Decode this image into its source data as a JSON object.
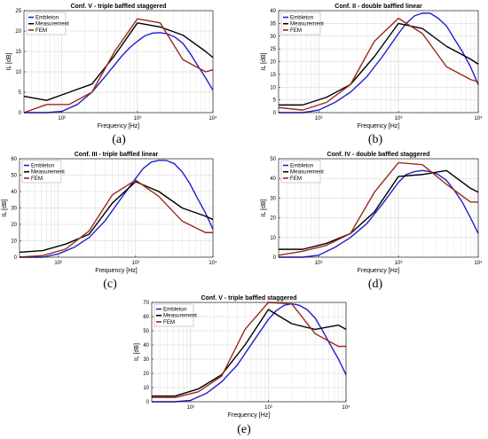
{
  "chart_data": [
    {
      "type": "line",
      "letter": "(a)",
      "title": "Conf. V - triple baffled staggered",
      "xlabel": "Frequency [Hz]",
      "ylabel": "IL [dB]",
      "xscale": "log",
      "xlim": [
        31.5,
        10000
      ],
      "ylim": [
        0,
        25
      ],
      "yticks": [
        0,
        5,
        10,
        15,
        20,
        25
      ],
      "xticks": [
        {
          "v": 100,
          "label": "10²"
        },
        {
          "v": 1000,
          "label": "10³"
        },
        {
          "v": 10000,
          "label": "10⁴"
        }
      ],
      "legend_position": "top-left",
      "grid": true,
      "series": [
        {
          "name": "Embleton",
          "color": "#1f1fd0",
          "x": [
            31.5,
            63,
            100,
            160,
            250,
            400,
            630,
            800,
            1000,
            1250,
            1600,
            2000,
            2500,
            3150,
            4000,
            5000,
            6300,
            8000,
            10000
          ],
          "y": [
            0,
            0,
            0.3,
            2,
            5,
            9.5,
            14,
            16,
            17.5,
            18.8,
            19.5,
            19.6,
            19.3,
            18.5,
            17,
            14.5,
            11.5,
            8.5,
            5.5
          ]
        },
        {
          "name": "Measurement",
          "color": "#000000",
          "x": [
            31.5,
            63,
            125,
            250,
            500,
            1000,
            2000,
            4000,
            8000,
            10000
          ],
          "y": [
            4,
            3,
            5,
            7,
            14,
            22,
            21,
            19,
            15,
            13.5
          ]
        },
        {
          "name": "FEM",
          "color": "#9b2a1a",
          "x": [
            31.5,
            63,
            125,
            250,
            500,
            1000,
            2000,
            4000,
            8000,
            10000
          ],
          "y": [
            0,
            2,
            2,
            5,
            15,
            23,
            22,
            13,
            10,
            10.5
          ]
        }
      ]
    },
    {
      "type": "line",
      "letter": "(b)",
      "title": "Conf. II - double baffled linear",
      "xlabel": "Frequency [Hz]",
      "ylabel": "IL [dB]",
      "xscale": "log",
      "xlim": [
        31.5,
        10000
      ],
      "ylim": [
        0,
        40
      ],
      "yticks": [
        0,
        5,
        10,
        15,
        20,
        25,
        30,
        35,
        40
      ],
      "xticks": [
        {
          "v": 100,
          "label": "10²"
        },
        {
          "v": 1000,
          "label": "10³"
        },
        {
          "v": 10000,
          "label": "10⁴"
        }
      ],
      "legend_position": "top-left",
      "grid": true,
      "series": [
        {
          "name": "Embleton",
          "color": "#1f1fd0",
          "x": [
            31.5,
            63,
            100,
            160,
            250,
            400,
            630,
            1000,
            1250,
            1600,
            2000,
            2500,
            3150,
            4000,
            5000,
            6300,
            8000,
            10000
          ],
          "y": [
            0,
            0,
            1,
            4,
            8,
            14,
            22,
            31,
            35,
            38,
            39,
            39,
            37,
            34,
            29,
            24,
            18,
            11
          ]
        },
        {
          "name": "Measurement",
          "color": "#000000",
          "x": [
            31.5,
            63,
            125,
            250,
            500,
            1000,
            2000,
            4000,
            8000,
            10000
          ],
          "y": [
            3,
            3,
            6,
            11,
            22,
            35,
            33,
            26,
            21,
            19
          ]
        },
        {
          "name": "FEM",
          "color": "#9b2a1a",
          "x": [
            31.5,
            63,
            125,
            250,
            500,
            1000,
            2000,
            4000,
            8000,
            10000
          ],
          "y": [
            2,
            1,
            4,
            11,
            28,
            37,
            31,
            18,
            13,
            12
          ]
        }
      ]
    },
    {
      "type": "line",
      "letter": "(c)",
      "title": "Conf. III - triple baffled linear",
      "xlabel": "Frequency [Hz]",
      "ylabel": "IL [dB]",
      "xscale": "log",
      "xlim": [
        31.5,
        10000
      ],
      "ylim": [
        0,
        60
      ],
      "yticks": [
        0,
        10,
        20,
        30,
        40,
        50,
        60
      ],
      "xticks": [
        {
          "v": 100,
          "label": "10²"
        },
        {
          "v": 1000,
          "label": "10³"
        },
        {
          "v": 10000,
          "label": "10⁴"
        }
      ],
      "legend_position": "top-left",
      "grid": true,
      "series": [
        {
          "name": "Embleton",
          "color": "#1f1fd0",
          "x": [
            31.5,
            63,
            100,
            160,
            250,
            400,
            630,
            1000,
            1250,
            1600,
            2000,
            2500,
            3150,
            4000,
            5000,
            6300,
            8000,
            10000
          ],
          "y": [
            0,
            0,
            2,
            6,
            12,
            22,
            35,
            48,
            54,
            58,
            59,
            59,
            57,
            52,
            45,
            36,
            27,
            17
          ]
        },
        {
          "name": "Measurement",
          "color": "#000000",
          "x": [
            31.5,
            63,
            125,
            250,
            500,
            1000,
            2000,
            4000,
            8000,
            10000
          ],
          "y": [
            3,
            4,
            8,
            14,
            33,
            46,
            40,
            30,
            25,
            23
          ]
        },
        {
          "name": "FEM",
          "color": "#9b2a1a",
          "x": [
            31.5,
            63,
            125,
            250,
            500,
            1000,
            2000,
            4000,
            8000,
            10000
          ],
          "y": [
            0,
            1,
            5,
            16,
            38,
            47,
            37,
            22,
            15,
            15
          ]
        }
      ]
    },
    {
      "type": "line",
      "letter": "(d)",
      "title": "Conf. IV - double baffled staggered",
      "xlabel": "Frequency [Hz]",
      "ylabel": "IL [dB]",
      "xscale": "log",
      "xlim": [
        31.5,
        10000
      ],
      "ylim": [
        0,
        50
      ],
      "yticks": [
        0,
        10,
        20,
        30,
        40,
        50
      ],
      "xticks": [
        {
          "v": 100,
          "label": "10²"
        },
        {
          "v": 1000,
          "label": "10³"
        },
        {
          "v": 10000,
          "label": "10⁴"
        }
      ],
      "legend_position": "top-left",
      "grid": true,
      "series": [
        {
          "name": "Embleton",
          "color": "#1f1fd0",
          "x": [
            31.5,
            63,
            100,
            160,
            250,
            400,
            630,
            1000,
            1250,
            1600,
            2000,
            2500,
            3150,
            4000,
            5000,
            6300,
            8000,
            10000
          ],
          "y": [
            0,
            0,
            1,
            5,
            10,
            17,
            27,
            38,
            42,
            43.5,
            44,
            43.5,
            42,
            39,
            34,
            28,
            20,
            12
          ]
        },
        {
          "name": "Measurement",
          "color": "#000000",
          "x": [
            31.5,
            63,
            125,
            250,
            500,
            1000,
            2000,
            4000,
            8000,
            10000
          ],
          "y": [
            4,
            4,
            7,
            12,
            23,
            41,
            42,
            44,
            35,
            33
          ]
        },
        {
          "name": "FEM",
          "color": "#9b2a1a",
          "x": [
            31.5,
            63,
            125,
            250,
            500,
            1000,
            2000,
            4000,
            8000,
            10000
          ],
          "y": [
            1,
            3,
            6,
            12,
            33,
            48,
            47,
            37,
            28,
            28
          ]
        }
      ]
    },
    {
      "type": "line",
      "letter": "(e)",
      "title": "Conf. V - triple baffled staggered",
      "xlabel": "Frequency [Hz]",
      "ylabel": "IL [dB]",
      "xscale": "log",
      "xlim": [
        31.5,
        10000
      ],
      "ylim": [
        0,
        70
      ],
      "yticks": [
        0,
        10,
        20,
        30,
        40,
        50,
        60,
        70
      ],
      "xticks": [
        {
          "v": 100,
          "label": "10²"
        },
        {
          "v": 1000,
          "label": "10³"
        },
        {
          "v": 10000,
          "label": "10⁴"
        }
      ],
      "legend_position": "top-left",
      "grid": true,
      "series": [
        {
          "name": "Embleton",
          "color": "#1f1fd0",
          "x": [
            31.5,
            63,
            100,
            160,
            250,
            400,
            630,
            1000,
            1250,
            1600,
            2000,
            2500,
            3150,
            4000,
            5000,
            6300,
            8000,
            10000
          ],
          "y": [
            0,
            0,
            1,
            6,
            14,
            26,
            42,
            58,
            64,
            68,
            69,
            68,
            65,
            59,
            50,
            40,
            30,
            19
          ]
        },
        {
          "name": "Measurement",
          "color": "#000000",
          "x": [
            31.5,
            63,
            125,
            250,
            500,
            1000,
            2000,
            4000,
            8000,
            10000
          ],
          "y": [
            4,
            4,
            9,
            19,
            40,
            65,
            55,
            51,
            54,
            51
          ]
        },
        {
          "name": "FEM",
          "color": "#9b2a1a",
          "x": [
            31.5,
            63,
            125,
            250,
            500,
            1000,
            2000,
            4000,
            8000,
            10000
          ],
          "y": [
            3,
            3,
            7,
            18,
            51,
            70,
            69,
            48,
            39,
            39
          ]
        }
      ]
    }
  ]
}
